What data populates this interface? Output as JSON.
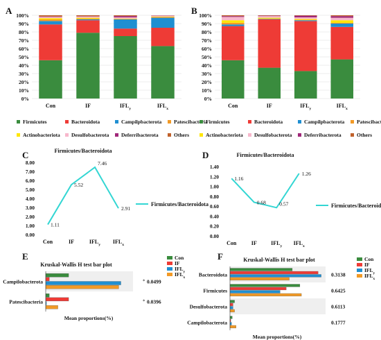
{
  "chart_data": [
    {
      "panel": "A",
      "type": "bar",
      "stacked": true,
      "categories": [
        "Con",
        "IF",
        "IFL_y",
        "IFL_x"
      ],
      "ytick_labels": [
        "0%",
        "10%",
        "20%",
        "30%",
        "40%",
        "50%",
        "60%",
        "70%",
        "80%",
        "90%",
        "100%"
      ],
      "ylim": [
        0,
        100
      ],
      "series": [
        {
          "name": "Firmicutes",
          "color": "#3a8c3e",
          "values": [
            46,
            79,
            75,
            63
          ]
        },
        {
          "name": "Bacteroidota",
          "color": "#ee3b36",
          "values": [
            43,
            15,
            9,
            22
          ]
        },
        {
          "name": "Campilpbacterota",
          "color": "#1f8fd1",
          "values": [
            4,
            1,
            11,
            12
          ]
        },
        {
          "name": "Patescibacteria",
          "color": "#f29a26",
          "values": [
            2,
            1,
            0.5,
            1
          ]
        },
        {
          "name": "Actinobacteriota",
          "color": "#ffe600",
          "values": [
            1.5,
            1,
            0.5,
            0.5
          ]
        },
        {
          "name": "Desulfobacterota",
          "color": "#f7b7cc",
          "values": [
            1.5,
            1.5,
            1.5,
            1
          ]
        },
        {
          "name": "Deferribacterota",
          "color": "#a02879",
          "values": [
            0.5,
            0.3,
            1.5,
            0.3
          ]
        },
        {
          "name": "Others",
          "color": "#c0612b",
          "values": [
            1.5,
            1.2,
            1,
            0.2
          ]
        }
      ]
    },
    {
      "panel": "B",
      "type": "bar",
      "stacked": true,
      "categories": [
        "Con",
        "IF",
        "IFL_y",
        "IFL_x"
      ],
      "ytick_labels": [
        "0%",
        "10%",
        "20%",
        "30%",
        "40%",
        "50%",
        "60%",
        "70%",
        "80%",
        "90%",
        "100%"
      ],
      "ylim": [
        0,
        100
      ],
      "series": [
        {
          "name": "Firmicutes",
          "color": "#3a8c3e",
          "values": [
            46,
            37,
            33,
            47
          ]
        },
        {
          "name": "Bacteroidota",
          "color": "#ee3b36",
          "values": [
            41,
            58,
            60,
            39
          ]
        },
        {
          "name": "Campilpbacterota",
          "color": "#1f8fd1",
          "values": [
            2,
            0.5,
            1,
            4
          ]
        },
        {
          "name": "Patescibacteria",
          "color": "#f29a26",
          "values": [
            2,
            0.5,
            0.5,
            1
          ]
        },
        {
          "name": "Actinobacteriota",
          "color": "#ffe600",
          "values": [
            3,
            1,
            1,
            3
          ]
        },
        {
          "name": "Desulfobacterota",
          "color": "#f7b7cc",
          "values": [
            4,
            2,
            2,
            3
          ]
        },
        {
          "name": "Deferribacterota",
          "color": "#a02879",
          "values": [
            1,
            0.5,
            2,
            2
          ]
        },
        {
          "name": "Others",
          "color": "#c0612b",
          "values": [
            1,
            0.5,
            0.5,
            1
          ]
        }
      ]
    },
    {
      "panel": "C",
      "type": "line",
      "title": "Firmicutes/Bacteroidota",
      "categories": [
        "Con",
        "IF",
        "IFL_y",
        "IFL_x"
      ],
      "series": [
        {
          "name": "Firmicutes/Bacteroidota",
          "color": "#33d6d3",
          "values": [
            1.11,
            5.52,
            7.46,
            2.91
          ]
        }
      ],
      "data_labels": [
        "1.11",
        "5.52",
        "7.46",
        "2.91"
      ],
      "ylim": [
        0,
        8
      ],
      "ytick_labels": [
        "0.00",
        "1.00",
        "2.00",
        "3.00",
        "4.00",
        "5.00",
        "6.00",
        "7.00",
        "8.00"
      ]
    },
    {
      "panel": "D",
      "type": "line",
      "title": "Firmicutes/Bacteroidota",
      "categories": [
        "Con",
        "IF",
        "IFL_y",
        "IFL_x"
      ],
      "series": [
        {
          "name": "Firmicutes/Bacteroidota",
          "color": "#33d6d3",
          "values": [
            1.16,
            0.68,
            0.57,
            1.26
          ]
        }
      ],
      "data_labels": [
        "1.16",
        "0.68",
        "0.57",
        "1.26"
      ],
      "ylim": [
        0,
        1.4
      ],
      "ytick_labels": [
        "0.00",
        "0.20",
        "0.40",
        "0.60",
        "0.80",
        "1.00",
        "1.20",
        "1.40"
      ]
    },
    {
      "panel": "E",
      "type": "bar",
      "orientation": "horizontal",
      "title": "Kruskal-Wallis H test bar plot",
      "xlabel": "Mean proportions(%)",
      "categories": [
        "Campilobacterota",
        "Patescibacteria"
      ],
      "p_values": [
        "0.0499",
        "0.0396"
      ],
      "significance": [
        "*",
        "*"
      ],
      "xlim": [
        0,
        12
      ],
      "series": [
        {
          "name": "Con",
          "color": "#3a8c3e",
          "values": [
            3.2,
            0.5
          ]
        },
        {
          "name": "IF",
          "color": "#ee3b36",
          "values": [
            0.5,
            3.2
          ]
        },
        {
          "name": "IFL_y",
          "color": "#1f8fd1",
          "values": [
            10.5,
            0.1
          ]
        },
        {
          "name": "IFL_x",
          "color": "#f29a26",
          "values": [
            10.2,
            1.7
          ]
        }
      ]
    },
    {
      "panel": "F",
      "type": "bar",
      "orientation": "horizontal",
      "title": "Kruskal-Wallis H test bar plot",
      "xlabel": "Mean proportions(%)",
      "categories": [
        "Bacteroidota",
        "Firmicutes",
        "Desulfobacterota",
        "Campilobacterota"
      ],
      "p_values": [
        "0.3138",
        "0.6425",
        "0.6113",
        "0.1777"
      ],
      "xlim": [
        0,
        62
      ],
      "series": [
        {
          "name": "Con",
          "color": "#3a8c3e",
          "values": [
            41,
            46,
            3,
            1.5
          ]
        },
        {
          "name": "IF",
          "color": "#ee3b36",
          "values": [
            58,
            37,
            2,
            0.5
          ]
        },
        {
          "name": "IFL_y",
          "color": "#1f8fd1",
          "values": [
            60,
            33,
            2,
            1
          ]
        },
        {
          "name": "IFL_x",
          "color": "#f29a26",
          "values": [
            39,
            47,
            3,
            4
          ]
        }
      ]
    }
  ],
  "panel_labels": [
    "A",
    "B",
    "C",
    "D",
    "E",
    "F"
  ]
}
